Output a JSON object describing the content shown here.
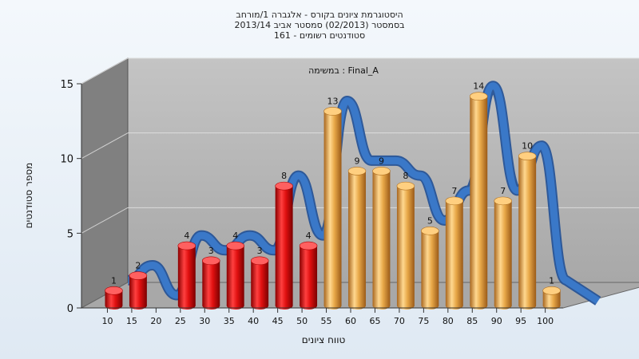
{
  "chart_data": {
    "type": "bar",
    "title_lines": [
      "היסטוגרמת ציונים בקורס - אלגברה 1/מורחב",
      "בסמסטר  (02/2013)  סמסטר אביב 2013/14",
      "סטודנטים רשומים - 161"
    ],
    "annotation": "במשימה : Final_A",
    "xlabel": "טווח ציונים",
    "ylabel": "מספר סטודנטים",
    "ylim": [
      0,
      15
    ],
    "yticks": [
      0,
      5,
      10,
      15
    ],
    "categories": [
      "10",
      "15",
      "20",
      "25",
      "30",
      "35",
      "40",
      "45",
      "50",
      "55",
      "60",
      "65",
      "70",
      "75",
      "80",
      "85",
      "90",
      "95",
      "100"
    ],
    "values": [
      1,
      2,
      0,
      4,
      3,
      4,
      3,
      8,
      4,
      13,
      9,
      9,
      8,
      5,
      7,
      14,
      7,
      10,
      1
    ],
    "fail_threshold_index": 9,
    "colors": {
      "fail": "#e01010",
      "pass": "#e8a848",
      "ribbon": "#3a78c8",
      "back_wall": "#b8b8b8",
      "side_wall": "#808080",
      "floor": "#a8a8a8"
    },
    "grid": true,
    "legend": "none"
  }
}
